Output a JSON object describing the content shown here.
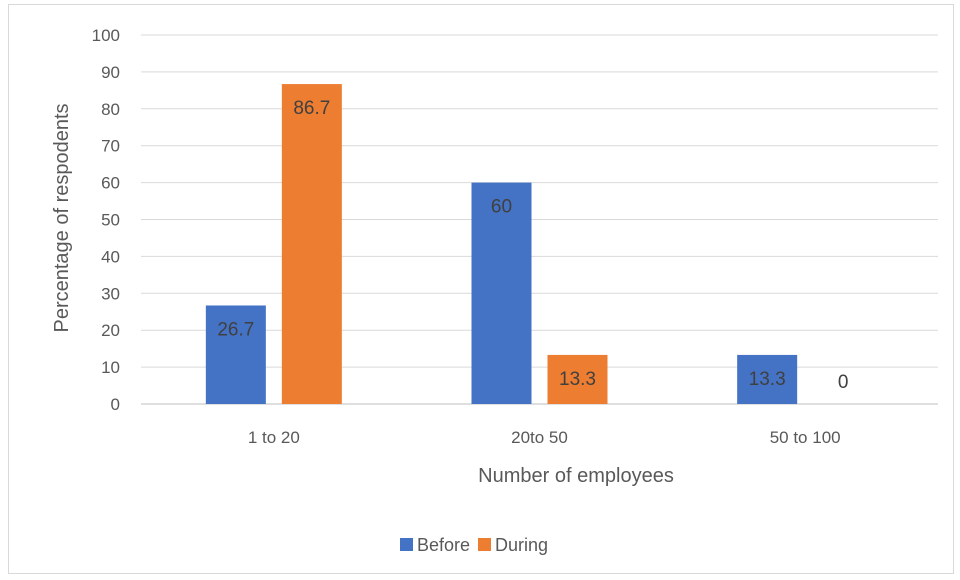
{
  "chart_data": {
    "type": "bar",
    "title": "",
    "xlabel": "Number of employees",
    "ylabel": "Percentage of respodents",
    "categories": [
      "1 to 20",
      "20to 50",
      "50 to 100"
    ],
    "series": [
      {
        "name": "Before",
        "values": [
          26.7,
          60,
          13.3
        ],
        "labels": [
          "26.7",
          "60",
          "13.3"
        ],
        "color": "#4472C4"
      },
      {
        "name": "During",
        "values": [
          86.7,
          13.3,
          0
        ],
        "labels": [
          "86.7",
          "13.3",
          "0"
        ],
        "color": "#ED7D31"
      }
    ],
    "ylim": [
      0,
      100
    ],
    "yticks": [
      "0",
      "10",
      "20",
      "30",
      "40",
      "50",
      "60",
      "70",
      "80",
      "90",
      "100"
    ],
    "grid": true,
    "legend_position": "bottom",
    "gridline_color": "#d9d9d9"
  }
}
